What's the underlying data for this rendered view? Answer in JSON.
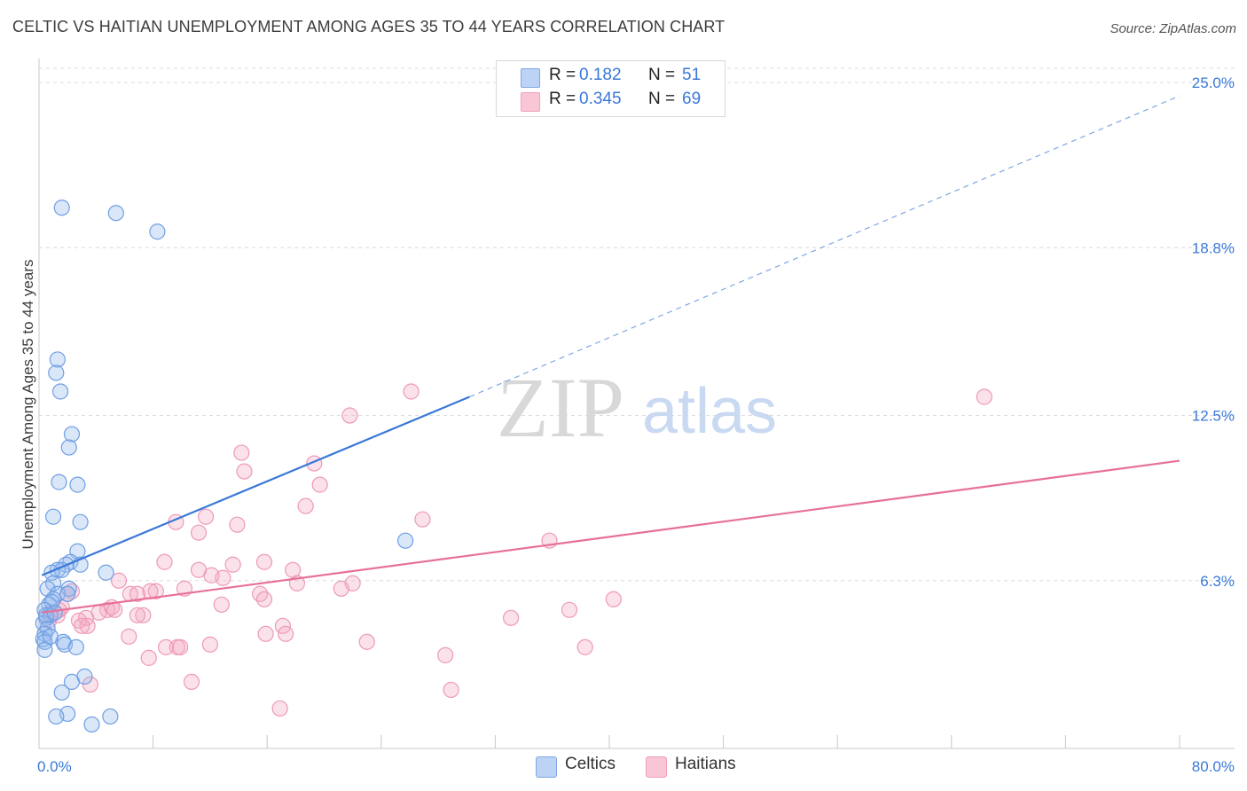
{
  "title": "CELTIC VS HAITIAN UNEMPLOYMENT AMONG AGES 35 TO 44 YEARS CORRELATION CHART",
  "source": "Source: ZipAtlas.com",
  "watermark": {
    "zip": "ZIP",
    "atlas": "atlas"
  },
  "legend": {
    "celtic": {
      "r_label": "R =",
      "r_value": "0.182",
      "n_label": "N =",
      "n_value": "51"
    },
    "haitian": {
      "r_label": "R =",
      "r_value": "0.345",
      "n_label": "N =",
      "n_value": "69"
    }
  },
  "chart_data": {
    "type": "scatter",
    "title": "CELTIC VS HAITIAN UNEMPLOYMENT AMONG AGES 35 TO 44 YEARS CORRELATION CHART",
    "xlabel": "",
    "ylabel": "Unemployment Among Ages 35 to 44 years",
    "xlim": [
      0,
      80
    ],
    "ylim": [
      0,
      25.9
    ],
    "x_tick_labels": [
      "0.0%",
      "80.0%"
    ],
    "y_ticks": [
      6.3,
      12.5,
      18.8,
      25.0
    ],
    "y_tick_labels": [
      "6.3%",
      "12.5%",
      "18.8%",
      "25.0%"
    ],
    "grid": "horizontal dashed",
    "legend_position": "top-center",
    "colors": {
      "celtic": "#8fb4ea",
      "celtic_line": "#3a78d8",
      "haitian": "#f3a3bd",
      "haitian_line": "#e7709a"
    },
    "series": [
      {
        "name": "Celtics",
        "trend": {
          "x": [
            0.2,
            30.2
          ],
          "y": [
            6.5,
            13.2
          ],
          "dashed_extension": {
            "x": [
              30.2,
              80.0
            ],
            "y": [
              13.2,
              24.5
            ]
          }
        },
        "points": [
          [
            1.6,
            20.3
          ],
          [
            5.4,
            20.1
          ],
          [
            8.3,
            19.4
          ],
          [
            1.3,
            14.6
          ],
          [
            1.2,
            14.1
          ],
          [
            1.5,
            13.4
          ],
          [
            2.3,
            11.8
          ],
          [
            2.1,
            11.3
          ],
          [
            1.4,
            10.0
          ],
          [
            2.7,
            9.9
          ],
          [
            1.0,
            8.7
          ],
          [
            2.9,
            8.5
          ],
          [
            25.7,
            7.8
          ],
          [
            2.7,
            7.4
          ],
          [
            2.2,
            7.0
          ],
          [
            2.9,
            6.9
          ],
          [
            1.9,
            6.9
          ],
          [
            1.3,
            6.7
          ],
          [
            1.6,
            6.7
          ],
          [
            0.9,
            6.6
          ],
          [
            4.7,
            6.6
          ],
          [
            1.0,
            6.2
          ],
          [
            0.6,
            6.0
          ],
          [
            2.1,
            6.0
          ],
          [
            1.3,
            5.8
          ],
          [
            2.0,
            5.8
          ],
          [
            1.0,
            5.6
          ],
          [
            0.7,
            5.4
          ],
          [
            0.9,
            5.5
          ],
          [
            0.4,
            5.2
          ],
          [
            0.8,
            5.0
          ],
          [
            0.5,
            4.9
          ],
          [
            0.3,
            4.7
          ],
          [
            0.6,
            4.5
          ],
          [
            0.4,
            4.3
          ],
          [
            0.3,
            4.1
          ],
          [
            0.4,
            4.0
          ],
          [
            1.7,
            4.0
          ],
          [
            1.8,
            3.9
          ],
          [
            2.6,
            3.8
          ],
          [
            0.4,
            3.7
          ],
          [
            3.2,
            2.7
          ],
          [
            2.3,
            2.5
          ],
          [
            1.6,
            2.1
          ],
          [
            2.0,
            1.3
          ],
          [
            1.2,
            1.2
          ],
          [
            5.0,
            1.2
          ],
          [
            3.7,
            0.9
          ],
          [
            0.5,
            5.0
          ],
          [
            1.1,
            5.1
          ],
          [
            0.8,
            4.2
          ]
        ]
      },
      {
        "name": "Haitians",
        "trend": {
          "x": [
            0.2,
            80.0
          ],
          "y": [
            5.1,
            10.8
          ]
        },
        "points": [
          [
            66.3,
            13.2
          ],
          [
            26.1,
            13.4
          ],
          [
            21.8,
            12.5
          ],
          [
            14.2,
            11.1
          ],
          [
            19.3,
            10.7
          ],
          [
            14.4,
            10.4
          ],
          [
            19.7,
            9.9
          ],
          [
            18.7,
            9.1
          ],
          [
            11.7,
            8.7
          ],
          [
            26.9,
            8.6
          ],
          [
            9.6,
            8.5
          ],
          [
            13.9,
            8.4
          ],
          [
            11.2,
            8.1
          ],
          [
            35.8,
            7.8
          ],
          [
            8.8,
            7.0
          ],
          [
            15.8,
            7.0
          ],
          [
            13.6,
            6.9
          ],
          [
            17.8,
            6.7
          ],
          [
            11.2,
            6.7
          ],
          [
            12.1,
            6.5
          ],
          [
            12.9,
            6.4
          ],
          [
            5.6,
            6.3
          ],
          [
            18.1,
            6.2
          ],
          [
            22.0,
            6.2
          ],
          [
            21.2,
            6.0
          ],
          [
            10.2,
            6.0
          ],
          [
            8.2,
            5.9
          ],
          [
            7.8,
            5.9
          ],
          [
            6.4,
            5.8
          ],
          [
            6.9,
            5.8
          ],
          [
            15.5,
            5.8
          ],
          [
            2.3,
            5.9
          ],
          [
            2.0,
            5.8
          ],
          [
            15.8,
            5.6
          ],
          [
            40.3,
            5.6
          ],
          [
            12.8,
            5.4
          ],
          [
            1.6,
            5.3
          ],
          [
            4.8,
            5.2
          ],
          [
            5.1,
            5.3
          ],
          [
            5.3,
            5.2
          ],
          [
            7.3,
            5.0
          ],
          [
            6.9,
            5.0
          ],
          [
            37.2,
            5.2
          ],
          [
            33.1,
            4.9
          ],
          [
            4.2,
            5.1
          ],
          [
            3.3,
            4.9
          ],
          [
            2.8,
            4.8
          ],
          [
            1.3,
            5.0
          ],
          [
            0.8,
            5.1
          ],
          [
            17.1,
            4.6
          ],
          [
            3.4,
            4.6
          ],
          [
            3.0,
            4.6
          ],
          [
            15.9,
            4.3
          ],
          [
            17.3,
            4.3
          ],
          [
            6.3,
            4.2
          ],
          [
            23.0,
            4.0
          ],
          [
            12.0,
            3.9
          ],
          [
            8.9,
            3.8
          ],
          [
            9.7,
            3.8
          ],
          [
            9.9,
            3.8
          ],
          [
            38.3,
            3.8
          ],
          [
            28.5,
            3.5
          ],
          [
            7.7,
            3.4
          ],
          [
            10.7,
            2.5
          ],
          [
            3.6,
            2.4
          ],
          [
            28.9,
            2.2
          ],
          [
            16.9,
            1.5
          ],
          [
            0.7,
            4.8
          ],
          [
            1.4,
            5.2
          ]
        ]
      }
    ]
  }
}
